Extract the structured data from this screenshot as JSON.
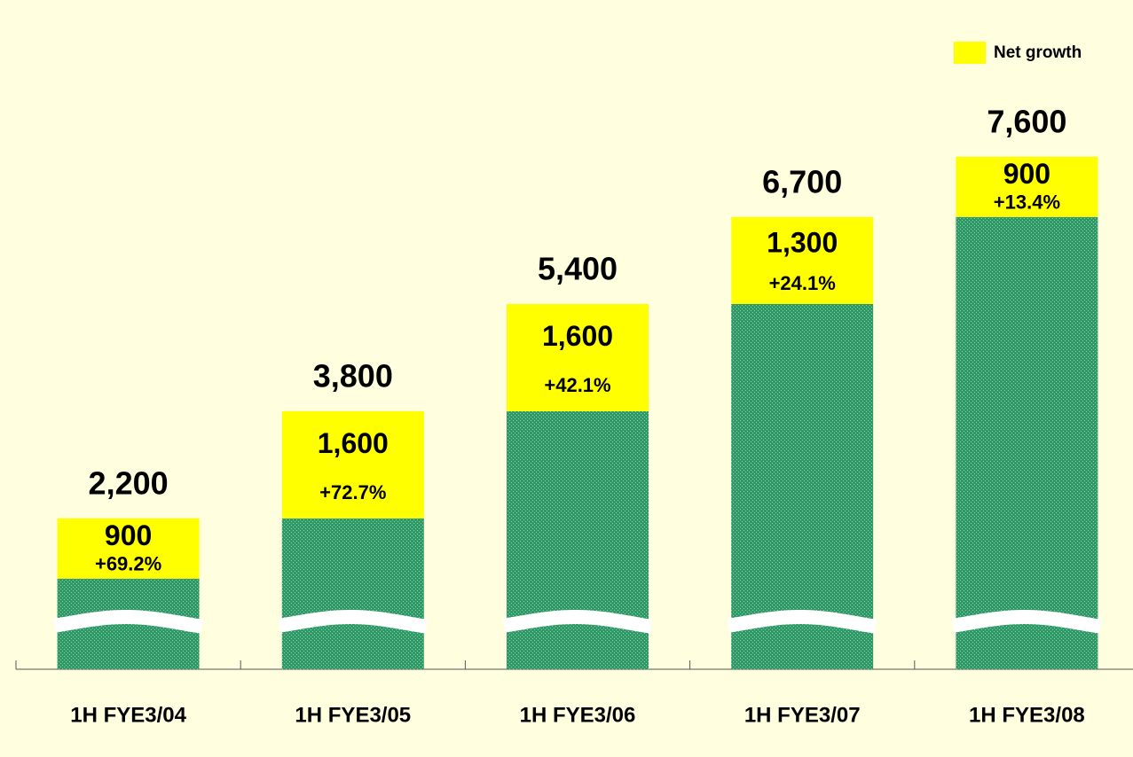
{
  "chart_data": {
    "type": "stacked_bar",
    "categories": [
      "1H FYE3/04",
      "1H FYE3/05",
      "1H FYE3/06",
      "1H FYE3/07",
      "1H FYE3/08"
    ],
    "series": [
      {
        "color": "#2f9a68",
        "values": [
          1300,
          2200,
          3800,
          5400,
          6700
        ]
      },
      {
        "name": "Net growth",
        "color": "#ffff00",
        "values": [
          900,
          1600,
          1600,
          1300,
          900
        ],
        "value_labels": [
          "900",
          "1,600",
          "1,600",
          "1,300",
          "900"
        ]
      }
    ],
    "growth_labels": [
      "+69.2%",
      "+72.7%",
      "+42.1%",
      "+24.1%",
      "+13.4%"
    ],
    "total_labels": [
      "2,200",
      "3,800",
      "5,400",
      "6,700",
      "7,600"
    ],
    "ylim": [
      0,
      9000
    ],
    "legend": "top-right"
  }
}
